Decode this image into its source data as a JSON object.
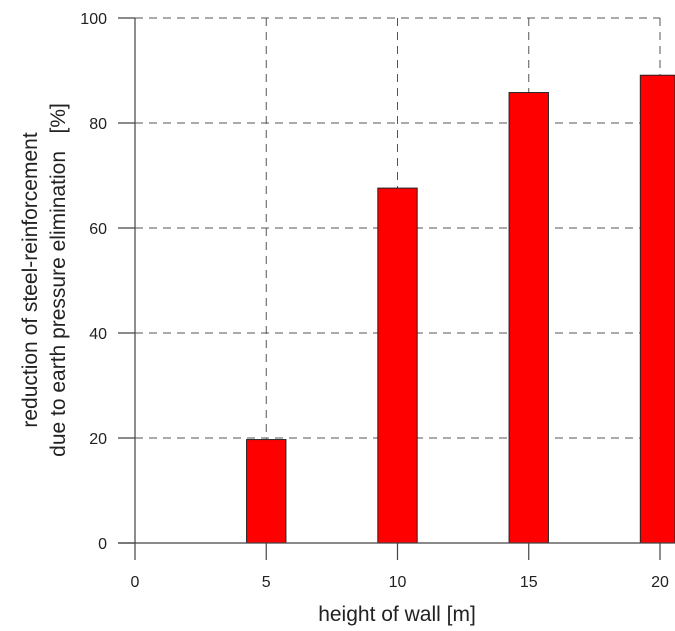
{
  "chart_data": {
    "type": "bar",
    "xlabel": "height of wall [m]",
    "ylabel_line1": "reduction of steel-reinforcement",
    "ylabel_line2": "due to earth pressure elimination   [%]",
    "x": [
      5,
      10,
      15,
      20
    ],
    "values": [
      19.7,
      67.6,
      85.8,
      89.1
    ],
    "bar_width": 1.5,
    "xlim": [
      0,
      20
    ],
    "ylim": [
      0,
      100
    ],
    "xticks": [
      0,
      5,
      10,
      15,
      20
    ],
    "yticks": [
      0,
      20,
      40,
      60,
      80,
      100
    ],
    "grid": "dashed",
    "bar_color": "#ff0000"
  }
}
